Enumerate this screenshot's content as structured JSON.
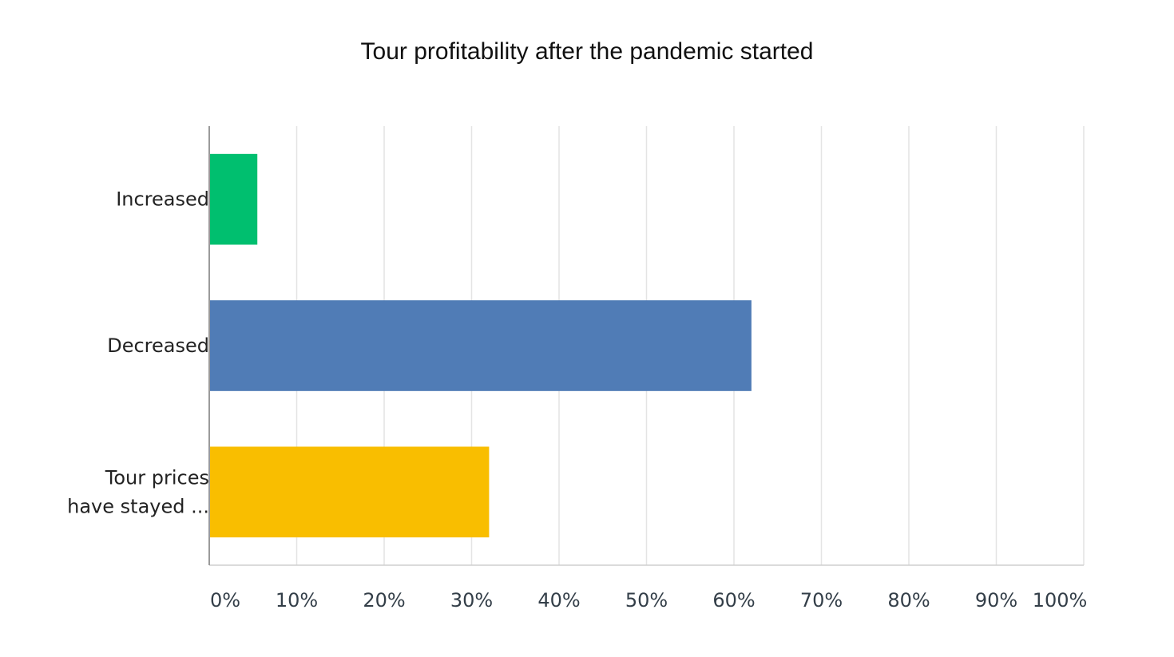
{
  "chart_data": {
    "type": "bar",
    "orientation": "horizontal",
    "title": "Tour profitability after the pandemic started",
    "categories": [
      "Increased",
      "Decreased",
      "Tour prices have stayed ..."
    ],
    "category_lines": [
      [
        "Increased"
      ],
      [
        "Decreased"
      ],
      [
        "Tour prices",
        "have stayed ..."
      ]
    ],
    "values": [
      5.5,
      62,
      32
    ],
    "colors": [
      "#00bf6f",
      "#507cb6",
      "#f9be00"
    ],
    "xlim": [
      0,
      100
    ],
    "x_ticks": [
      0,
      10,
      20,
      30,
      40,
      50,
      60,
      70,
      80,
      90,
      100
    ],
    "x_tick_labels": [
      "0%",
      "10%",
      "20%",
      "30%",
      "40%",
      "50%",
      "60%",
      "70%",
      "80%",
      "90%",
      "100%"
    ],
    "xlabel": "",
    "ylabel": "",
    "grid": "vertical"
  }
}
